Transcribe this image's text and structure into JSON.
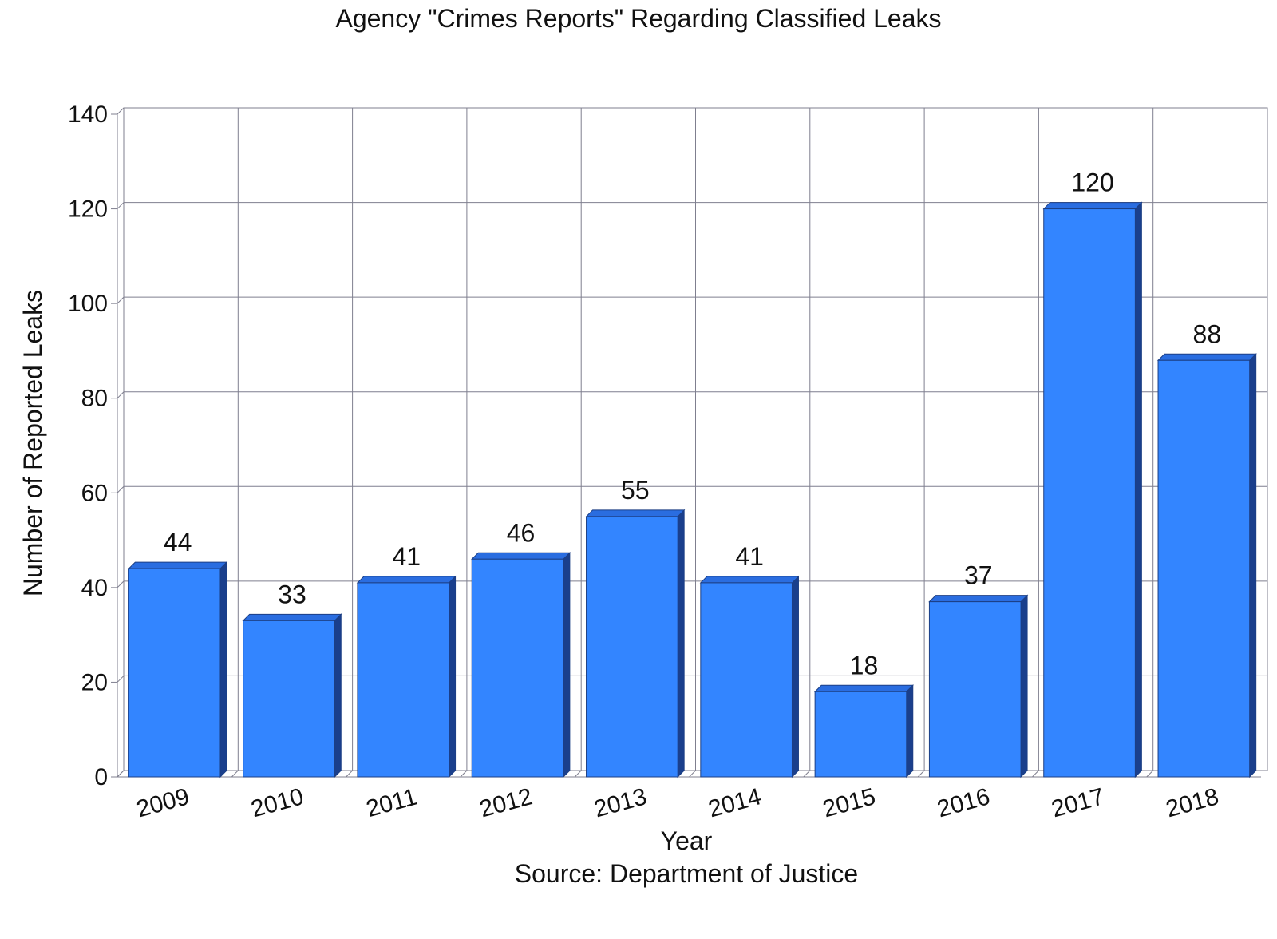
{
  "chart_data": {
    "type": "bar",
    "title": "Agency \"Crimes Reports\" Regarding Classified Leaks",
    "xlabel": "Year",
    "ylabel": "Number of Reported Leaks",
    "source": "Source: Department of Justice",
    "categories": [
      "2009",
      "2010",
      "2011",
      "2012",
      "2013",
      "2014",
      "2015",
      "2016",
      "2017",
      "2018"
    ],
    "values": [
      44,
      33,
      41,
      46,
      55,
      41,
      18,
      37,
      120,
      88
    ],
    "ylim": [
      0,
      140
    ],
    "yticks": [
      0,
      20,
      40,
      60,
      80,
      100,
      120,
      140
    ],
    "grid": true,
    "legend": "none",
    "colors": {
      "bar_front": "#3385ff",
      "bar_top": "#2a6de0",
      "bar_side": "#1a3f8c",
      "bar_outline": "#1c3f85"
    }
  }
}
